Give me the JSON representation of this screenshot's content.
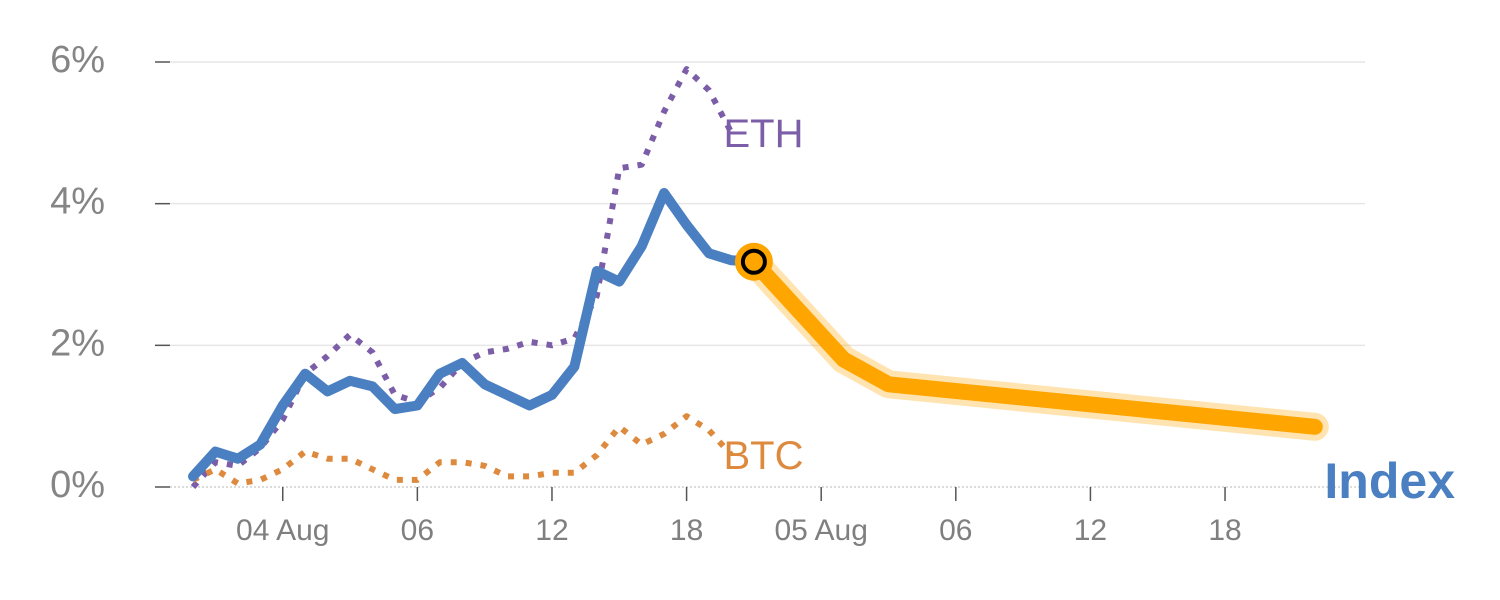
{
  "chart_data": {
    "type": "line",
    "title": "",
    "xlabel": "",
    "ylabel": "",
    "y_unit": "%",
    "ylim": [
      0,
      6
    ],
    "y_ticks": [
      {
        "value": 0,
        "label": "0%"
      },
      {
        "value": 2,
        "label": "2%"
      },
      {
        "value": 4,
        "label": "4%"
      },
      {
        "value": 6,
        "label": "6%"
      }
    ],
    "x_ticks": [
      {
        "index": 4,
        "label": "04 Aug"
      },
      {
        "index": 10,
        "label": "06"
      },
      {
        "index": 16,
        "label": "12"
      },
      {
        "index": 22,
        "label": "18"
      },
      {
        "index": 28,
        "label": "05 Aug"
      },
      {
        "index": 34,
        "label": "06"
      },
      {
        "index": 40,
        "label": "12"
      },
      {
        "index": 46,
        "label": "18"
      }
    ],
    "xlim": [
      -1.25,
      50.5
    ],
    "grid": true,
    "series": [
      {
        "name": "ETH",
        "style": "dotted",
        "color": "#7b5ea7",
        "x": [
          0,
          1,
          2,
          3,
          4,
          5,
          6,
          7,
          8,
          9,
          10,
          11,
          12,
          13,
          14,
          15,
          16,
          17,
          18,
          19,
          20,
          21,
          22,
          23,
          24
        ],
        "values": [
          0.0,
          0.35,
          0.3,
          0.55,
          0.95,
          1.6,
          1.85,
          2.15,
          1.9,
          1.3,
          1.2,
          1.4,
          1.75,
          1.9,
          1.95,
          2.05,
          2.0,
          2.1,
          2.7,
          4.5,
          4.55,
          5.3,
          5.9,
          5.6,
          5.0
        ]
      },
      {
        "name": "BTC",
        "style": "dotted",
        "color": "#dd8a3e",
        "x": [
          0,
          1,
          2,
          3,
          4,
          5,
          6,
          7,
          8,
          9,
          10,
          11,
          12,
          13,
          14,
          15,
          16,
          17,
          18,
          19,
          20,
          21,
          22,
          23,
          24
        ],
        "values": [
          0.1,
          0.25,
          0.05,
          0.1,
          0.25,
          0.5,
          0.4,
          0.4,
          0.25,
          0.1,
          0.1,
          0.35,
          0.35,
          0.3,
          0.15,
          0.15,
          0.2,
          0.2,
          0.45,
          0.85,
          0.6,
          0.75,
          1.0,
          0.8,
          0.45
        ]
      },
      {
        "name": "Index",
        "style": "solid",
        "color": "#4a7fc1",
        "x": [
          0,
          1,
          2,
          3,
          4,
          5,
          6,
          7,
          8,
          9,
          10,
          11,
          12,
          13,
          14,
          15,
          16,
          17,
          18,
          19,
          20,
          21,
          22,
          23,
          24,
          25
        ],
        "values": [
          0.15,
          0.5,
          0.4,
          0.6,
          1.15,
          1.6,
          1.35,
          1.5,
          1.42,
          1.1,
          1.15,
          1.6,
          1.75,
          1.45,
          1.3,
          1.15,
          1.3,
          1.7,
          3.05,
          2.9,
          3.4,
          4.15,
          3.7,
          3.3,
          3.2,
          3.18
        ]
      }
    ],
    "projection": {
      "color": "#ffa500",
      "x": [
        25,
        29,
        31,
        50
      ],
      "values": [
        3.18,
        1.8,
        1.45,
        0.85
      ]
    },
    "marker": {
      "x": 25,
      "value": 3.18,
      "fill": "#ffa500",
      "stroke": "#000000"
    }
  }
}
